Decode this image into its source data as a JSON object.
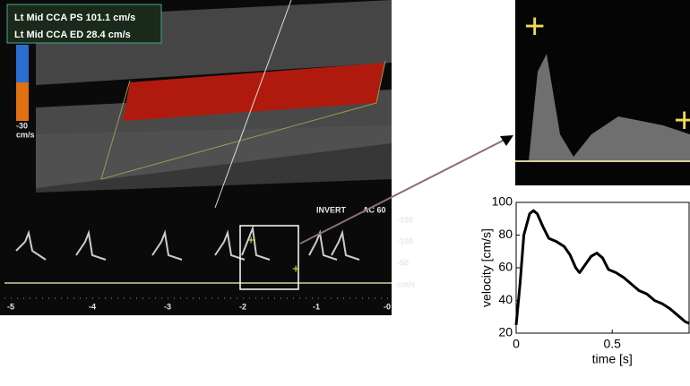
{
  "ultrasound": {
    "readout": [
      "Lt Mid  CCA PS 101.1 cm/s",
      "Lt Mid  CCA ED  28.4 cm/s"
    ],
    "colorbar": [
      "-30",
      "cm/s"
    ],
    "mode": [
      "INVERT",
      "AC 60"
    ],
    "velocity_scale": [
      "-150",
      "-100",
      "-50",
      "cm/s"
    ],
    "time_scale": [
      "-5",
      "-4",
      "-3",
      "-2",
      "-1",
      "-0"
    ]
  },
  "chart_data": {
    "type": "line",
    "xlabel": "time [s]",
    "ylabel": "velocity [cm/s]",
    "x": [
      0,
      0.02,
      0.04,
      0.07,
      0.09,
      0.11,
      0.14,
      0.17,
      0.21,
      0.25,
      0.28,
      0.31,
      0.33,
      0.36,
      0.39,
      0.42,
      0.45,
      0.48,
      0.52,
      0.56,
      0.6,
      0.64,
      0.68,
      0.72,
      0.76,
      0.8,
      0.84,
      0.88,
      0.9
    ],
    "series": [
      {
        "color": "#000000",
        "values": [
          25,
          50,
          80,
          93,
          95,
          93,
          85,
          78,
          76,
          73,
          68,
          60,
          57,
          62,
          67,
          69,
          66,
          59,
          57,
          54,
          50,
          46,
          44,
          40,
          38,
          35,
          31,
          27,
          26
        ]
      }
    ],
    "xlim": [
      0,
      0.9
    ],
    "ylim": [
      20,
      100
    ],
    "xticks": [
      0,
      0.5
    ],
    "yticks": [
      20,
      40,
      60,
      80,
      100
    ]
  }
}
